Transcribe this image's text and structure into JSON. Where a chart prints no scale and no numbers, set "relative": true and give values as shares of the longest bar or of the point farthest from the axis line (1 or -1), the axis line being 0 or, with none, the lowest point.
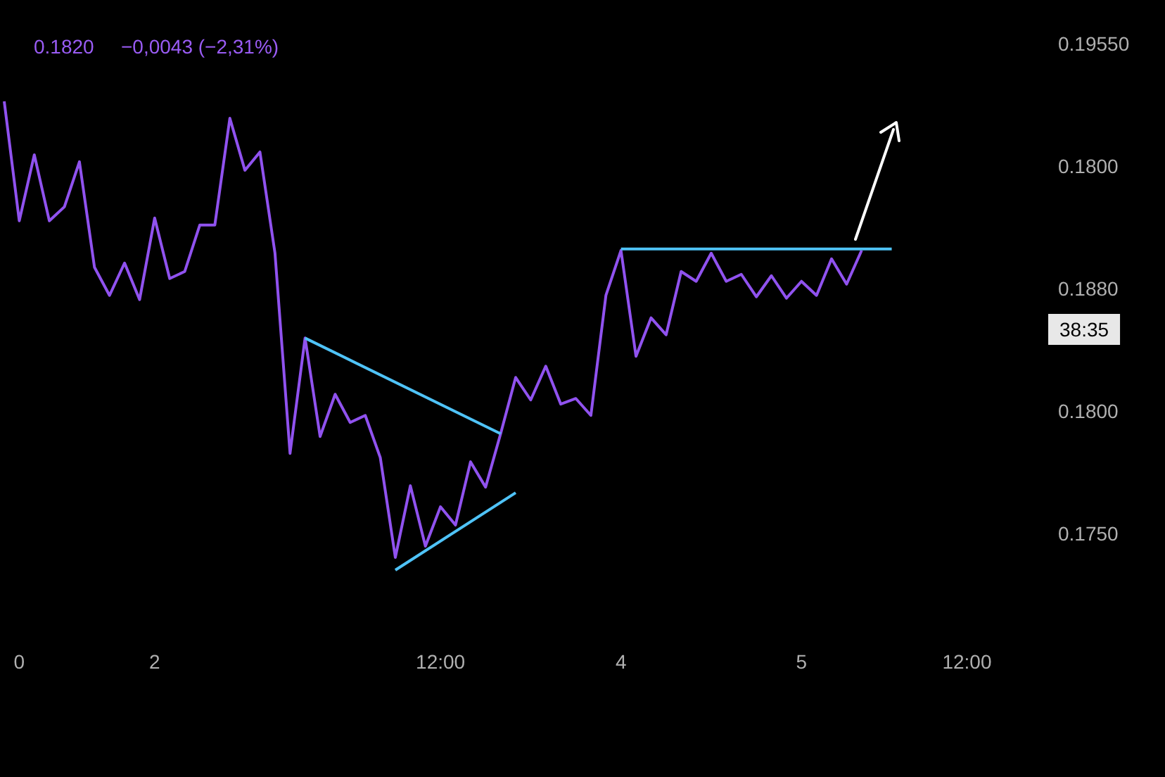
{
  "chart_data": {
    "type": "line",
    "marker": "none",
    "relative": true,
    "annotations": [
      "0.1820",
      "−0,0043 (−2,31%)",
      "38:35",
      "0.19550",
      "0.1800",
      "0.1880",
      "0.1800",
      "0.1750"
    ],
    "categories": [
      null,
      "0",
      null,
      null,
      null,
      null,
      null,
      null,
      null,
      null,
      "2",
      null,
      null,
      null,
      null,
      null,
      null,
      null,
      null,
      null,
      null,
      null,
      null,
      null,
      null,
      null,
      null,
      null,
      null,
      "12:00",
      null,
      null,
      null,
      null,
      null,
      null,
      null,
      null,
      null,
      null,
      null,
      "4",
      null,
      null,
      null,
      null,
      null,
      null,
      null,
      null,
      null,
      null,
      null,
      "5",
      null,
      null,
      null,
      null,
      null,
      null,
      null,
      null,
      null,
      null,
      "12:00",
      null,
      null,
      null,
      null
    ],
    "series": [
      {
        "color": "#9052ef",
        "values": [
          1.0,
          0.745,
          0.886,
          0.745,
          0.775,
          0.871,
          0.646,
          0.586,
          0.655,
          0.577,
          0.751,
          0.622,
          0.637,
          0.736,
          0.736,
          0.964,
          0.853,
          0.892,
          0.676,
          0.249,
          0.495,
          0.285,
          0.375,
          0.315,
          0.33,
          0.24,
          0.027,
          0.18,
          0.051,
          0.135,
          0.096,
          0.231,
          0.177,
          0.291,
          0.411,
          0.363,
          0.435,
          0.354,
          0.366,
          0.33,
          0.586,
          0.682,
          0.456,
          0.538,
          0.502,
          0.637,
          0.616,
          0.676,
          0.616,
          0.631,
          0.583,
          0.628,
          0.58,
          0.616,
          0.586,
          0.664,
          0.61,
          0.682,
          null,
          null,
          null,
          null,
          null,
          null,
          null,
          null,
          null,
          null,
          null
        ]
      },
      {
        "color": "#4fc3f7",
        "values": [
          null,
          null,
          null,
          null,
          null,
          null,
          null,
          null,
          null,
          null,
          null,
          null,
          null,
          null,
          null,
          null,
          null,
          null,
          null,
          null,
          0.495,
          null,
          null,
          null,
          null,
          null,
          null,
          null,
          null,
          null,
          null,
          null,
          null,
          0.291,
          null,
          null,
          null,
          null,
          null,
          null,
          null,
          null,
          null,
          null,
          null,
          null,
          null,
          null,
          null,
          null,
          null,
          null,
          null,
          null,
          null,
          null,
          null,
          null,
          null,
          null,
          null,
          null,
          null,
          null,
          null,
          null,
          null,
          null,
          null
        ]
      },
      {
        "color": "#4fc3f7",
        "values": [
          null,
          null,
          null,
          null,
          null,
          null,
          null,
          null,
          null,
          null,
          null,
          null,
          null,
          null,
          null,
          null,
          null,
          null,
          null,
          null,
          null,
          null,
          null,
          null,
          null,
          null,
          0,
          null,
          null,
          null,
          null,
          null,
          null,
          null,
          0.165,
          null,
          null,
          null,
          null,
          null,
          null,
          null,
          null,
          null,
          null,
          null,
          null,
          null,
          null,
          null,
          null,
          null,
          null,
          null,
          null,
          null,
          null,
          null,
          null,
          null,
          null,
          null,
          null,
          null,
          null,
          null,
          null,
          null,
          null
        ]
      },
      {
        "color": "#4fc3f7",
        "values": [
          null,
          null,
          null,
          null,
          null,
          null,
          null,
          null,
          null,
          null,
          null,
          null,
          null,
          null,
          null,
          null,
          null,
          null,
          null,
          null,
          null,
          null,
          null,
          null,
          null,
          null,
          null,
          null,
          null,
          null,
          null,
          null,
          null,
          null,
          null,
          null,
          null,
          null,
          null,
          null,
          null,
          0.685,
          null,
          null,
          null,
          null,
          null,
          null,
          null,
          null,
          null,
          null,
          null,
          null,
          null,
          null,
          null,
          null,
          null,
          0.685,
          null,
          null,
          null,
          null,
          null,
          null,
          null,
          null,
          null
        ]
      }
    ]
  }
}
